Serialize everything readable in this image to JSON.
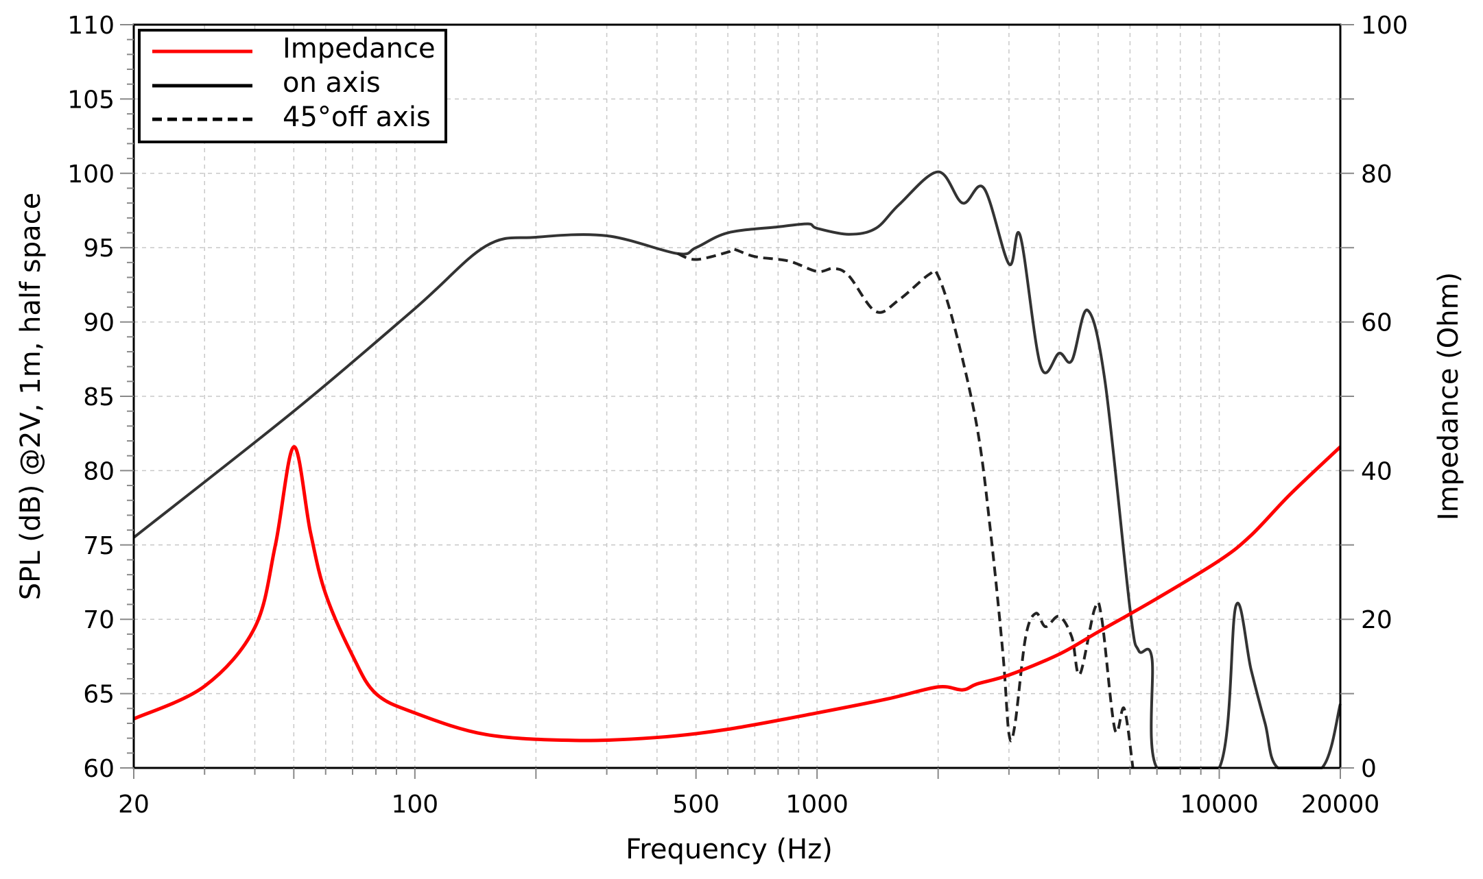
{
  "chart_data": {
    "type": "line",
    "xlabel": "Frequency (Hz)",
    "ylabel": "SPL (dB) @2V, 1m, half space",
    "y2label": "Impedance (Ohm)",
    "xscale": "log",
    "xlim": [
      20,
      20000
    ],
    "ylim": [
      60,
      110
    ],
    "y2lim": [
      0,
      100
    ],
    "grid": true,
    "legend_position": "top-left",
    "xticks": [
      20,
      100,
      500,
      1000,
      10000,
      20000
    ],
    "xtick_labels": [
      "20",
      "100",
      "500",
      "1000",
      "10000",
      "20000"
    ],
    "yticks": [
      "60",
      "65",
      "70",
      "75",
      "80",
      "85",
      "90",
      "95",
      "100",
      "105",
      "110"
    ],
    "y2ticks": [
      "0",
      "20",
      "40",
      "60",
      "80",
      "100"
    ],
    "series": [
      {
        "name": "Impedance",
        "axis": "right",
        "color": "#ff0000",
        "style": "solid",
        "x": [
          20,
          30,
          40,
          45,
          50,
          55,
          60,
          70,
          80,
          100,
          150,
          250,
          400,
          600,
          1000,
          1500,
          2000,
          2300,
          2500,
          3000,
          4000,
          5000,
          7000,
          10000,
          12000,
          15000,
          20000
        ],
        "y": [
          6.6,
          11,
          18.9,
          30,
          43.2,
          31.7,
          23.4,
          15.1,
          10,
          7.4,
          4.5,
          3.7,
          4.1,
          5.2,
          7.4,
          9.3,
          10.9,
          10.5,
          11.3,
          12.5,
          15.3,
          18.3,
          22.8,
          27.9,
          31.3,
          36.8,
          43.2
        ]
      },
      {
        "name": "on axis",
        "axis": "left",
        "color": "#000000",
        "style": "solid",
        "x": [
          20,
          50,
          100,
          150,
          200,
          300,
          450,
          500,
          600,
          800,
          950,
          1000,
          1200,
          1400,
          1600,
          2000,
          2300,
          2600,
          3000,
          3200,
          3600,
          4000,
          4300,
          4700,
          5200,
          6000,
          6300,
          6800,
          7000,
          10000,
          11000,
          12000,
          13000,
          14000,
          18000,
          20000
        ],
        "y": [
          75.5,
          84,
          90.9,
          95.1,
          95.7,
          95.8,
          94.6,
          95,
          96,
          96.4,
          96.6,
          96.3,
          95.9,
          96.3,
          97.9,
          100.1,
          98,
          99,
          93.9,
          95.8,
          87,
          87.9,
          87.4,
          90.8,
          86,
          70.7,
          67.9,
          67.4,
          60,
          60,
          70.9,
          66.6,
          63,
          60,
          60,
          64.3
        ]
      },
      {
        "name": "45°off axis",
        "axis": "left",
        "color": "#000000",
        "style": "dashed",
        "x": [
          450,
          500,
          600,
          620,
          700,
          850,
          1000,
          1100,
          1200,
          1400,
          1600,
          1900,
          2000,
          2200,
          2500,
          2700,
          2900,
          3000,
          3100,
          3300,
          3500,
          3700,
          4000,
          4300,
          4500,
          4900,
          5100,
          5500,
          5800,
          6100
        ],
        "y": [
          94.6,
          94.2,
          94.7,
          94.9,
          94.4,
          94.1,
          93.4,
          93.6,
          93.1,
          90.7,
          91.5,
          93.2,
          93.1,
          89.6,
          82.9,
          75.9,
          67.6,
          62.3,
          62.8,
          68.8,
          70.4,
          69.5,
          70.2,
          68.8,
          66.3,
          70.7,
          70.1,
          62.6,
          64,
          60
        ]
      }
    ]
  }
}
